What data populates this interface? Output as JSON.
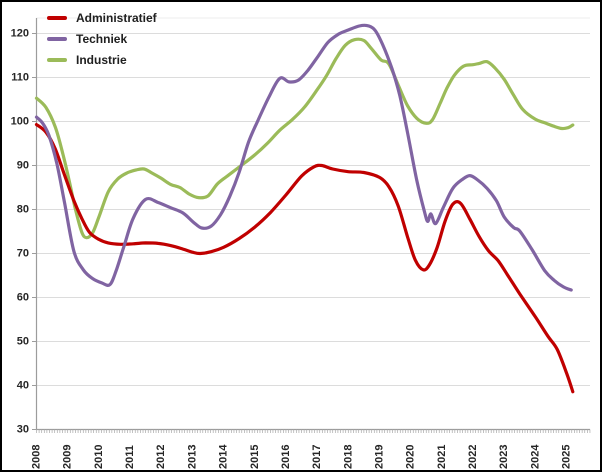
{
  "chart_data": {
    "type": "line",
    "title": "",
    "grid": "horizontal",
    "legend_position": "top-left",
    "x_axis": {
      "labels": [
        "2008",
        "2009",
        "2010",
        "2011",
        "2012",
        "2013",
        "2014",
        "2015",
        "2016",
        "2017",
        "2018",
        "2019",
        "2020",
        "2021",
        "2022",
        "2023",
        "2024",
        "2025"
      ],
      "range": [
        2008,
        2025.7
      ],
      "minor_tick": "monthly"
    },
    "y_axis": {
      "labels": [
        "30",
        "40",
        "50",
        "60",
        "70",
        "80",
        "90",
        "100",
        "110",
        "120"
      ],
      "min": 30,
      "max": 120,
      "step": 10
    },
    "series": [
      {
        "name": "Administratief",
        "color": "#C00000",
        "points": [
          [
            2008.0,
            99.3
          ],
          [
            2008.3,
            97.6
          ],
          [
            2008.6,
            93.8
          ],
          [
            2008.9,
            87.8
          ],
          [
            2009.2,
            82.0
          ],
          [
            2009.45,
            78.0
          ],
          [
            2009.7,
            74.8
          ],
          [
            2010.0,
            73.2
          ],
          [
            2010.3,
            72.4
          ],
          [
            2010.7,
            72.1
          ],
          [
            2011.1,
            72.2
          ],
          [
            2011.5,
            72.4
          ],
          [
            2011.9,
            72.3
          ],
          [
            2012.3,
            71.8
          ],
          [
            2012.7,
            71.0
          ],
          [
            2013.0,
            70.3
          ],
          [
            2013.25,
            70.0
          ],
          [
            2013.6,
            70.4
          ],
          [
            2014.0,
            71.4
          ],
          [
            2014.5,
            73.4
          ],
          [
            2015.0,
            76.0
          ],
          [
            2015.5,
            79.3
          ],
          [
            2016.0,
            83.3
          ],
          [
            2016.5,
            87.6
          ],
          [
            2016.9,
            89.7
          ],
          [
            2017.15,
            90.0
          ],
          [
            2017.5,
            89.2
          ],
          [
            2018.0,
            88.6
          ],
          [
            2018.5,
            88.4
          ],
          [
            2019.0,
            87.3
          ],
          [
            2019.3,
            85.2
          ],
          [
            2019.6,
            80.8
          ],
          [
            2019.9,
            73.8
          ],
          [
            2020.15,
            68.5
          ],
          [
            2020.4,
            66.3
          ],
          [
            2020.6,
            67.4
          ],
          [
            2020.85,
            71.4
          ],
          [
            2021.1,
            77.3
          ],
          [
            2021.35,
            81.2
          ],
          [
            2021.6,
            81.4
          ],
          [
            2021.9,
            77.8
          ],
          [
            2022.2,
            73.8
          ],
          [
            2022.5,
            70.6
          ],
          [
            2022.8,
            68.4
          ],
          [
            2023.1,
            65.2
          ],
          [
            2023.5,
            60.8
          ],
          [
            2024.0,
            55.6
          ],
          [
            2024.4,
            51.2
          ],
          [
            2024.7,
            48.2
          ],
          [
            2025.0,
            42.8
          ],
          [
            2025.2,
            38.6
          ]
        ]
      },
      {
        "name": "Techniek",
        "color": "#8064A2",
        "points": [
          [
            2008.0,
            101.0
          ],
          [
            2008.2,
            99.6
          ],
          [
            2008.4,
            96.8
          ],
          [
            2008.65,
            90.5
          ],
          [
            2008.9,
            81.5
          ],
          [
            2009.2,
            70.5
          ],
          [
            2009.5,
            66.3
          ],
          [
            2009.8,
            64.3
          ],
          [
            2010.1,
            63.3
          ],
          [
            2010.35,
            62.9
          ],
          [
            2010.55,
            66.0
          ],
          [
            2010.8,
            71.5
          ],
          [
            2011.1,
            78.0
          ],
          [
            2011.5,
            82.3
          ],
          [
            2011.9,
            81.6
          ],
          [
            2012.3,
            80.4
          ],
          [
            2012.7,
            79.2
          ],
          [
            2013.05,
            77.0
          ],
          [
            2013.3,
            75.8
          ],
          [
            2013.6,
            76.2
          ],
          [
            2013.9,
            78.8
          ],
          [
            2014.2,
            83.0
          ],
          [
            2014.5,
            88.5
          ],
          [
            2014.8,
            95.3
          ],
          [
            2015.1,
            100.2
          ],
          [
            2015.45,
            105.5
          ],
          [
            2015.8,
            109.8
          ],
          [
            2016.1,
            109.0
          ],
          [
            2016.4,
            109.4
          ],
          [
            2016.7,
            111.6
          ],
          [
            2017.0,
            114.5
          ],
          [
            2017.35,
            118.0
          ],
          [
            2017.7,
            119.9
          ],
          [
            2018.0,
            120.8
          ],
          [
            2018.35,
            121.7
          ],
          [
            2018.6,
            121.8
          ],
          [
            2018.85,
            120.8
          ],
          [
            2019.1,
            117.5
          ],
          [
            2019.4,
            112.0
          ],
          [
            2019.65,
            106.0
          ],
          [
            2019.9,
            97.5
          ],
          [
            2020.2,
            86.5
          ],
          [
            2020.45,
            79.3
          ],
          [
            2020.55,
            77.3
          ],
          [
            2020.65,
            79.0
          ],
          [
            2020.8,
            76.8
          ],
          [
            2021.05,
            80.5
          ],
          [
            2021.35,
            84.8
          ],
          [
            2021.65,
            86.8
          ],
          [
            2021.9,
            87.7
          ],
          [
            2022.15,
            86.7
          ],
          [
            2022.45,
            84.8
          ],
          [
            2022.75,
            82.0
          ],
          [
            2023.0,
            78.3
          ],
          [
            2023.3,
            75.9
          ],
          [
            2023.5,
            75.1
          ],
          [
            2023.9,
            70.8
          ],
          [
            2024.3,
            66.1
          ],
          [
            2024.6,
            63.9
          ],
          [
            2024.9,
            62.4
          ],
          [
            2025.15,
            61.7
          ]
        ]
      },
      {
        "name": "Industrie",
        "color": "#9BBB59",
        "points": [
          [
            2008.0,
            105.3
          ],
          [
            2008.3,
            103.2
          ],
          [
            2008.6,
            98.8
          ],
          [
            2008.85,
            92.5
          ],
          [
            2009.05,
            86.5
          ],
          [
            2009.25,
            80.0
          ],
          [
            2009.45,
            74.9
          ],
          [
            2009.6,
            73.6
          ],
          [
            2009.8,
            74.7
          ],
          [
            2010.0,
            78.3
          ],
          [
            2010.3,
            84.0
          ],
          [
            2010.6,
            86.9
          ],
          [
            2010.9,
            88.3
          ],
          [
            2011.2,
            89.0
          ],
          [
            2011.45,
            89.2
          ],
          [
            2011.7,
            88.3
          ],
          [
            2012.0,
            87.1
          ],
          [
            2012.3,
            85.7
          ],
          [
            2012.6,
            85.0
          ],
          [
            2012.9,
            83.5
          ],
          [
            2013.2,
            82.7
          ],
          [
            2013.5,
            83.1
          ],
          [
            2013.8,
            85.8
          ],
          [
            2014.1,
            87.5
          ],
          [
            2014.55,
            89.9
          ],
          [
            2015.0,
            92.4
          ],
          [
            2015.4,
            95.0
          ],
          [
            2015.8,
            98.0
          ],
          [
            2016.2,
            100.4
          ],
          [
            2016.6,
            103.3
          ],
          [
            2017.0,
            107.2
          ],
          [
            2017.3,
            110.4
          ],
          [
            2017.6,
            114.2
          ],
          [
            2017.9,
            117.3
          ],
          [
            2018.2,
            118.6
          ],
          [
            2018.5,
            118.4
          ],
          [
            2018.75,
            116.5
          ],
          [
            2019.05,
            114.0
          ],
          [
            2019.3,
            113.1
          ],
          [
            2019.6,
            108.3
          ],
          [
            2019.9,
            103.6
          ],
          [
            2020.2,
            100.7
          ],
          [
            2020.5,
            99.6
          ],
          [
            2020.7,
            100.4
          ],
          [
            2020.95,
            104.2
          ],
          [
            2021.15,
            107.4
          ],
          [
            2021.4,
            110.5
          ],
          [
            2021.7,
            112.6
          ],
          [
            2022.0,
            112.9
          ],
          [
            2022.2,
            113.2
          ],
          [
            2022.45,
            113.6
          ],
          [
            2022.7,
            112.2
          ],
          [
            2023.0,
            109.6
          ],
          [
            2023.3,
            106.0
          ],
          [
            2023.6,
            102.7
          ],
          [
            2024.0,
            100.5
          ],
          [
            2024.3,
            99.7
          ],
          [
            2024.6,
            98.9
          ],
          [
            2024.85,
            98.4
          ],
          [
            2025.05,
            98.6
          ],
          [
            2025.2,
            99.2
          ]
        ]
      }
    ]
  },
  "colors": {
    "background": "#FFFFFF",
    "border": "#000000",
    "grid": "#DCDCDC",
    "plot_top_border": "#ECECEC",
    "axis": "#9C9C9C",
    "minor_tick": "#A8A8A8",
    "label_text": "#262626"
  }
}
